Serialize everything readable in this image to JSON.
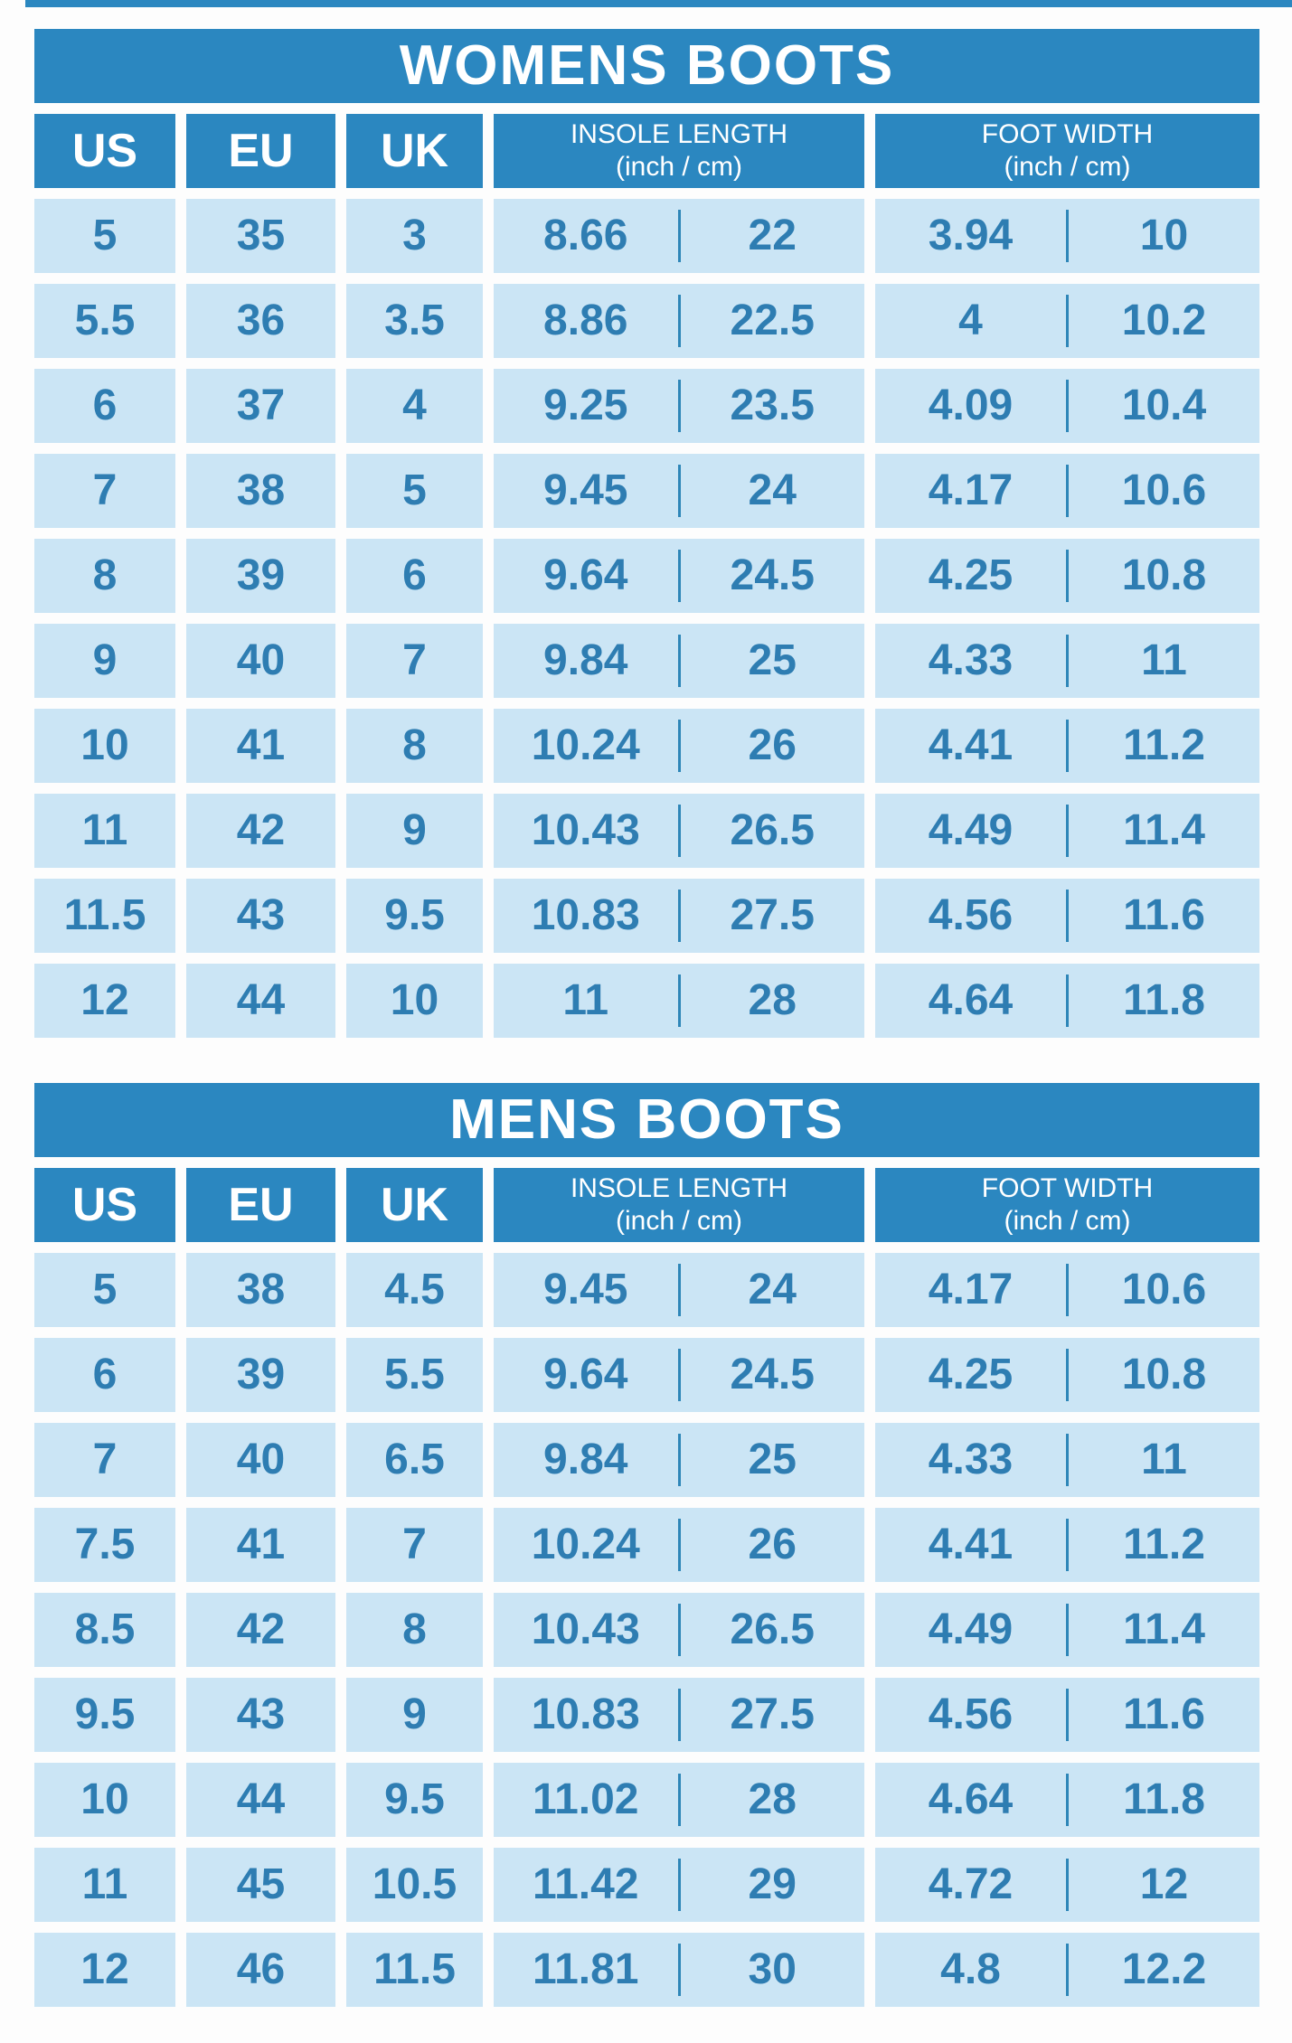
{
  "colors": {
    "header_bg": "#2b87c0",
    "cell_bg": "#cbe5f5",
    "value_text": "#2e7db2",
    "divider": "#2e86b8",
    "header_text": "#ffffff"
  },
  "tables": [
    {
      "title": "WOMENS BOOTS",
      "columns": {
        "us": "US",
        "eu": "EU",
        "uk": "UK",
        "insole_line1": "INSOLE LENGTH",
        "insole_line2": "(inch / cm)",
        "width_line1": "FOOT WIDTH",
        "width_line2": "(inch / cm)"
      },
      "rows": [
        {
          "us": "5",
          "eu": "35",
          "uk": "3",
          "insole_inch": "8.66",
          "insole_cm": "22",
          "width_inch": "3.94",
          "width_cm": "10"
        },
        {
          "us": "5.5",
          "eu": "36",
          "uk": "3.5",
          "insole_inch": "8.86",
          "insole_cm": "22.5",
          "width_inch": "4",
          "width_cm": "10.2"
        },
        {
          "us": "6",
          "eu": "37",
          "uk": "4",
          "insole_inch": "9.25",
          "insole_cm": "23.5",
          "width_inch": "4.09",
          "width_cm": "10.4"
        },
        {
          "us": "7",
          "eu": "38",
          "uk": "5",
          "insole_inch": "9.45",
          "insole_cm": "24",
          "width_inch": "4.17",
          "width_cm": "10.6"
        },
        {
          "us": "8",
          "eu": "39",
          "uk": "6",
          "insole_inch": "9.64",
          "insole_cm": "24.5",
          "width_inch": "4.25",
          "width_cm": "10.8"
        },
        {
          "us": "9",
          "eu": "40",
          "uk": "7",
          "insole_inch": "9.84",
          "insole_cm": "25",
          "width_inch": "4.33",
          "width_cm": "11"
        },
        {
          "us": "10",
          "eu": "41",
          "uk": "8",
          "insole_inch": "10.24",
          "insole_cm": "26",
          "width_inch": "4.41",
          "width_cm": "11.2"
        },
        {
          "us": "11",
          "eu": "42",
          "uk": "9",
          "insole_inch": "10.43",
          "insole_cm": "26.5",
          "width_inch": "4.49",
          "width_cm": "11.4"
        },
        {
          "us": "11.5",
          "eu": "43",
          "uk": "9.5",
          "insole_inch": "10.83",
          "insole_cm": "27.5",
          "width_inch": "4.56",
          "width_cm": "11.6"
        },
        {
          "us": "12",
          "eu": "44",
          "uk": "10",
          "insole_inch": "11",
          "insole_cm": "28",
          "width_inch": "4.64",
          "width_cm": "11.8"
        }
      ]
    },
    {
      "title": "MENS BOOTS",
      "columns": {
        "us": "US",
        "eu": "EU",
        "uk": "UK",
        "insole_line1": "INSOLE LENGTH",
        "insole_line2": "(inch / cm)",
        "width_line1": "FOOT WIDTH",
        "width_line2": "(inch / cm)"
      },
      "rows": [
        {
          "us": "5",
          "eu": "38",
          "uk": "4.5",
          "insole_inch": "9.45",
          "insole_cm": "24",
          "width_inch": "4.17",
          "width_cm": "10.6"
        },
        {
          "us": "6",
          "eu": "39",
          "uk": "5.5",
          "insole_inch": "9.64",
          "insole_cm": "24.5",
          "width_inch": "4.25",
          "width_cm": "10.8"
        },
        {
          "us": "7",
          "eu": "40",
          "uk": "6.5",
          "insole_inch": "9.84",
          "insole_cm": "25",
          "width_inch": "4.33",
          "width_cm": "11"
        },
        {
          "us": "7.5",
          "eu": "41",
          "uk": "7",
          "insole_inch": "10.24",
          "insole_cm": "26",
          "width_inch": "4.41",
          "width_cm": "11.2"
        },
        {
          "us": "8.5",
          "eu": "42",
          "uk": "8",
          "insole_inch": "10.43",
          "insole_cm": "26.5",
          "width_inch": "4.49",
          "width_cm": "11.4"
        },
        {
          "us": "9.5",
          "eu": "43",
          "uk": "9",
          "insole_inch": "10.83",
          "insole_cm": "27.5",
          "width_inch": "4.56",
          "width_cm": "11.6"
        },
        {
          "us": "10",
          "eu": "44",
          "uk": "9.5",
          "insole_inch": "11.02",
          "insole_cm": "28",
          "width_inch": "4.64",
          "width_cm": "11.8"
        },
        {
          "us": "11",
          "eu": "45",
          "uk": "10.5",
          "insole_inch": "11.42",
          "insole_cm": "29",
          "width_inch": "4.72",
          "width_cm": "12"
        },
        {
          "us": "12",
          "eu": "46",
          "uk": "11.5",
          "insole_inch": "11.81",
          "insole_cm": "30",
          "width_inch": "4.8",
          "width_cm": "12.2"
        }
      ]
    }
  ]
}
